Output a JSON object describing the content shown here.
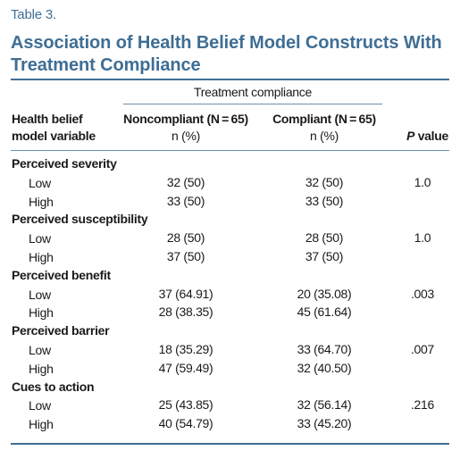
{
  "table": {
    "label": "Table 3.",
    "title": "Association of Health Belief Model Constructs With Treatment Compliance",
    "group_header": "Treatment compliance",
    "col_variable": [
      "Health belief",
      "model variable"
    ],
    "col_noncompliant": [
      "Noncompliant (N = 65)",
      "n (%)"
    ],
    "col_compliant": [
      "Compliant (N = 65)",
      "n (%)"
    ],
    "col_p": "P",
    "col_p_suffix": " value",
    "rows": [
      {
        "label": "Perceived severity",
        "is_group": true
      },
      {
        "label": "Low",
        "noncompliant": "32 (50)",
        "compliant": "32 (50)",
        "p": "1.0"
      },
      {
        "label": "High",
        "noncompliant": "33 (50)",
        "compliant": "33 (50)",
        "p": ""
      },
      {
        "label": "Perceived susceptibility",
        "is_group": true
      },
      {
        "label": "Low",
        "noncompliant": "28 (50)",
        "compliant": "28 (50)",
        "p": "1.0"
      },
      {
        "label": "High",
        "noncompliant": "37 (50)",
        "compliant": "37 (50)",
        "p": ""
      },
      {
        "label": "Perceived benefit",
        "is_group": true
      },
      {
        "label": "Low",
        "noncompliant": "37 (64.91)",
        "compliant": "20 (35.08)",
        "p": ".003"
      },
      {
        "label": "High",
        "noncompliant": "28 (38.35)",
        "compliant": "45 (61.64)",
        "p": ""
      },
      {
        "label": "Perceived barrier",
        "is_group": true
      },
      {
        "label": "Low",
        "noncompliant": "18 (35.29)",
        "compliant": "33 (64.70)",
        "p": ".007"
      },
      {
        "label": "High",
        "noncompliant": "47 (59.49)",
        "compliant": "32 (40.50)",
        "p": ""
      },
      {
        "label": "Cues to action",
        "is_group": true
      },
      {
        "label": "Low",
        "noncompliant": "25 (43.85)",
        "compliant": "32 (56.14)",
        "p": ".216"
      },
      {
        "label": "High",
        "noncompliant": "40 (54.79)",
        "compliant": "33 (45.20)",
        "p": ""
      }
    ]
  },
  "colors": {
    "accent": "#3f6e94",
    "text": "#1a1a1a"
  }
}
